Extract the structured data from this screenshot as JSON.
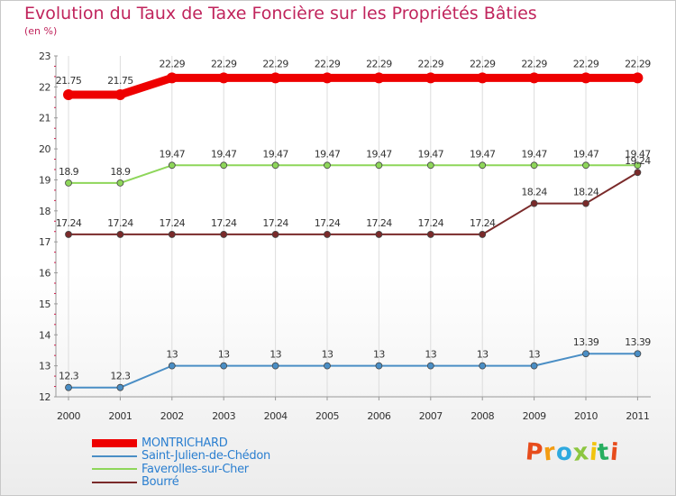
{
  "header": {
    "title": "Evolution du Taux de Taxe Foncière sur les Propriétés Bâties",
    "subtitle": "(en %)"
  },
  "logo": {
    "text": "Proxiti",
    "colors": [
      "#e74c1c",
      "#f39c12",
      "#2ea9df",
      "#8cc63f",
      "#f1c40f",
      "#27ae60",
      "#e74c1c"
    ]
  },
  "colors": {
    "axis": "#999999",
    "ticks": "#cc1b4a",
    "grid": "#dddddd",
    "tick_label": "#333333"
  },
  "chart_data": {
    "type": "line",
    "title": "Evolution du Taux de Taxe Foncière sur les Propriétés Bâties",
    "ylabel": "(en %)",
    "xlabel": "",
    "ylim": [
      12,
      23
    ],
    "yticks": [
      12,
      13,
      14,
      15,
      16,
      17,
      18,
      19,
      20,
      21,
      22,
      23
    ],
    "categories": [
      "2000",
      "2001",
      "2002",
      "2003",
      "2004",
      "2005",
      "2006",
      "2007",
      "2008",
      "2009",
      "2010",
      "2011"
    ],
    "grid": true,
    "legend_position": "bottom-left",
    "series": [
      {
        "name": "MONTRICHARD",
        "color": "#ee0000",
        "thick": true,
        "values": [
          21.75,
          21.75,
          22.29,
          22.29,
          22.29,
          22.29,
          22.29,
          22.29,
          22.29,
          22.29,
          22.29,
          22.29
        ],
        "labels": [
          "21.75",
          "21.75",
          "22.29",
          "22.29",
          "22.29",
          "22.29",
          "22.29",
          "22.29",
          "22.29",
          "22.29",
          "22.29",
          "22.29"
        ]
      },
      {
        "name": "Saint-Julien-de-Chédon",
        "color": "#4a8ec5",
        "thick": false,
        "values": [
          12.3,
          12.3,
          13,
          13,
          13,
          13,
          13,
          13,
          13,
          13,
          13.39,
          13.39
        ],
        "labels": [
          "12.3",
          "12.3",
          "13",
          "13",
          "13",
          "13",
          "13",
          "13",
          "13",
          "13",
          "13.39",
          "13.39"
        ]
      },
      {
        "name": "Faverolles-sur-Cher",
        "color": "#8ed65a",
        "thick": false,
        "values": [
          18.9,
          18.9,
          19.47,
          19.47,
          19.47,
          19.47,
          19.47,
          19.47,
          19.47,
          19.47,
          19.47,
          19.47
        ],
        "labels": [
          "18.9",
          "18.9",
          "19.47",
          "19.47",
          "19.47",
          "19.47",
          "19.47",
          "19.47",
          "19.47",
          "19.47",
          "19.47",
          "19.47"
        ]
      },
      {
        "name": "Bourré",
        "color": "#7a2a2a",
        "thick": false,
        "values": [
          17.24,
          17.24,
          17.24,
          17.24,
          17.24,
          17.24,
          17.24,
          17.24,
          17.24,
          18.24,
          18.24,
          19.24
        ],
        "labels": [
          "17.24",
          "17.24",
          "17.24",
          "17.24",
          "17.24",
          "17.24",
          "17.24",
          "17.24",
          "17.24",
          "18.24",
          "18.24",
          "19.24"
        ]
      }
    ]
  }
}
